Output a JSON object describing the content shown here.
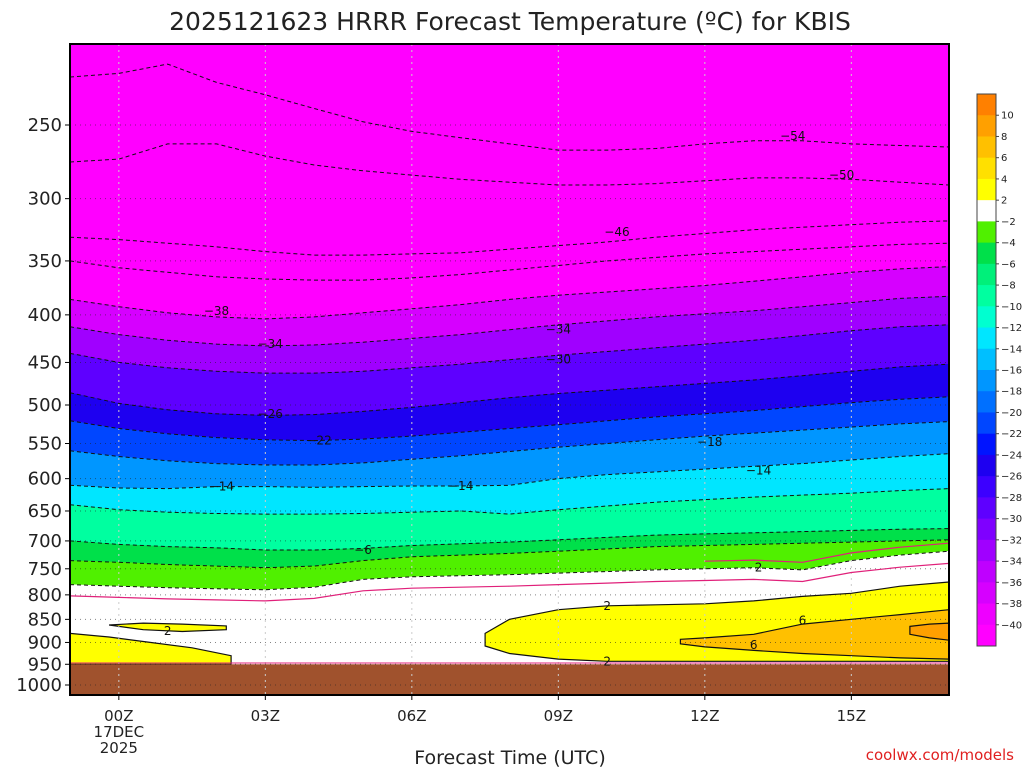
{
  "page": {
    "title": "2025121623 HRRR Forecast Temperature (ºC) for KBIS",
    "credit": "coolwx.com/models"
  },
  "chart_data": {
    "type": "heatmap",
    "title": "2025121623 HRRR Forecast Temperature (ºC) for KBIS",
    "xlabel": "Forecast Time (UTC)",
    "ylabel": "",
    "x_unit": "hours from 00Z 17DEC2025",
    "xlim": [
      -1,
      17
    ],
    "ylim_pressure_hPa": [
      1000,
      200
    ],
    "y_scale": "log-pressure",
    "x_ticks": [
      {
        "value": 0,
        "label": "00Z",
        "sub": [
          "17DEC",
          "2025"
        ]
      },
      {
        "value": 3,
        "label": "03Z"
      },
      {
        "value": 6,
        "label": "06Z"
      },
      {
        "value": 9,
        "label": "09Z"
      },
      {
        "value": 12,
        "label": "12Z"
      },
      {
        "value": 15,
        "label": "15Z"
      }
    ],
    "y_ticks": [
      250,
      300,
      350,
      400,
      450,
      500,
      550,
      600,
      650,
      700,
      750,
      800,
      850,
      900,
      950,
      1000
    ],
    "grid": true,
    "ground_pressure_hPa": 950,
    "ground_color": "#a0522d",
    "color_scale": [
      {
        "lo": -60,
        "hi": -40,
        "color": "#ff00ff"
      },
      {
        "lo": -40,
        "hi": -38,
        "color": "#ee00ff"
      },
      {
        "lo": -38,
        "hi": -36,
        "color": "#d600ff"
      },
      {
        "lo": -36,
        "hi": -34,
        "color": "#bf00ff"
      },
      {
        "lo": -34,
        "hi": -32,
        "color": "#a000ff"
      },
      {
        "lo": -32,
        "hi": -30,
        "color": "#7f00ff"
      },
      {
        "lo": -30,
        "hi": -28,
        "color": "#5e00ff"
      },
      {
        "lo": -28,
        "hi": -26,
        "color": "#3c00ff"
      },
      {
        "lo": -26,
        "hi": -24,
        "color": "#1e00f0"
      },
      {
        "lo": -24,
        "hi": -22,
        "color": "#0014ff"
      },
      {
        "lo": -22,
        "hi": -20,
        "color": "#0046ff"
      },
      {
        "lo": -20,
        "hi": -18,
        "color": "#0070ff"
      },
      {
        "lo": -18,
        "hi": -16,
        "color": "#0096ff"
      },
      {
        "lo": -16,
        "hi": -14,
        "color": "#00bfff"
      },
      {
        "lo": -14,
        "hi": -12,
        "color": "#00e6ff"
      },
      {
        "lo": -12,
        "hi": -10,
        "color": "#00ffd0"
      },
      {
        "lo": -10,
        "hi": -8,
        "color": "#00ffa0"
      },
      {
        "lo": -8,
        "hi": -6,
        "color": "#00f07a"
      },
      {
        "lo": -6,
        "hi": -4,
        "color": "#00e04a"
      },
      {
        "lo": -4,
        "hi": -2,
        "color": "#50f000"
      },
      {
        "lo": -2,
        "hi": 2,
        "color": "#ffffff"
      },
      {
        "lo": 2,
        "hi": 4,
        "color": "#ffff00"
      },
      {
        "lo": 4,
        "hi": 6,
        "color": "#ffe000"
      },
      {
        "lo": 6,
        "hi": 8,
        "color": "#ffc000"
      },
      {
        "lo": 8,
        "hi": 10,
        "color": "#ffa000"
      },
      {
        "lo": 10,
        "hi": 20,
        "color": "#ff8000"
      }
    ],
    "colorbar_labels": [
      10,
      8,
      6,
      4,
      2,
      -2,
      -4,
      -6,
      -8,
      -10,
      -12,
      -14,
      -16,
      -18,
      -20,
      -22,
      -24,
      -26,
      -28,
      -30,
      -32,
      -34,
      -36,
      -38,
      -40
    ],
    "sounding_columns_hours": [
      -1,
      0,
      1,
      2,
      3,
      4,
      5,
      6,
      7,
      8,
      9,
      10,
      11,
      12,
      13,
      14,
      15,
      16,
      17
    ],
    "isotherm_pressures_hPa": [
      {
        "temp": -54,
        "p": [
          222,
          220,
          215,
          225,
          232,
          240,
          248,
          254,
          258,
          262,
          266,
          266,
          265,
          262,
          260,
          260,
          262,
          263,
          264
        ]
      },
      {
        "temp": -50,
        "p": [
          274,
          272,
          262,
          262,
          270,
          276,
          280,
          283,
          286,
          288,
          290,
          290,
          289,
          287,
          285,
          285,
          286,
          288,
          290
        ]
      },
      {
        "temp": -46,
        "p": [
          330,
          332,
          335,
          338,
          342,
          345,
          345,
          344,
          343,
          340,
          337,
          334,
          330,
          327,
          324,
          322,
          320,
          318,
          317
        ]
      },
      {
        "temp": -42,
        "p": [
          350,
          356,
          360,
          364,
          366,
          367,
          367,
          365,
          362,
          358,
          354,
          350,
          347,
          344,
          342,
          340,
          338,
          336,
          335
        ]
      },
      {
        "temp": -38,
        "p": [
          385,
          392,
          398,
          402,
          404,
          402,
          398,
          394,
          390,
          385,
          381,
          378,
          375,
          372,
          368,
          364,
          360,
          357,
          355
        ]
      },
      {
        "temp": -34,
        "p": [
          412,
          420,
          426,
          430,
          432,
          431,
          428,
          424,
          420,
          415,
          410,
          406,
          402,
          399,
          396,
          392,
          388,
          384,
          382
        ]
      },
      {
        "temp": -30,
        "p": [
          440,
          450,
          456,
          460,
          462,
          462,
          460,
          456,
          452,
          447,
          442,
          438,
          434,
          430,
          426,
          421,
          416,
          412,
          410
        ]
      },
      {
        "temp": -26,
        "p": [
          485,
          498,
          506,
          511,
          513,
          512,
          508,
          503,
          497,
          491,
          486,
          482,
          478,
          474,
          470,
          465,
          460,
          455,
          452
        ]
      },
      {
        "temp": -22,
        "p": [
          520,
          530,
          537,
          542,
          545,
          546,
          544,
          540,
          535,
          530,
          525,
          520,
          515,
          511,
          507,
          502,
          497,
          493,
          490
        ]
      },
      {
        "temp": -18,
        "p": [
          560,
          568,
          574,
          578,
          580,
          580,
          577,
          572,
          567,
          561,
          555,
          550,
          545,
          540,
          536,
          532,
          528,
          524,
          521
        ]
      },
      {
        "temp": -14,
        "p": [
          610,
          614,
          615,
          612,
          612,
          613,
          612,
          611,
          611,
          610,
          600,
          594,
          590,
          586,
          582,
          578,
          573,
          568,
          564
        ]
      },
      {
        "temp": -10,
        "p": [
          640,
          648,
          652,
          654,
          655,
          655,
          654,
          652,
          650,
          655,
          648,
          642,
          636,
          632,
          628,
          625,
          622,
          618,
          615
        ]
      },
      {
        "temp": -6,
        "p": [
          700,
          706,
          710,
          712,
          716,
          716,
          713,
          708,
          705,
          702,
          698,
          694,
          690,
          688,
          686,
          684,
          682,
          680,
          679
        ]
      },
      {
        "temp": -4,
        "p": [
          735,
          738,
          742,
          745,
          748,
          745,
          735,
          728,
          725,
          722,
          718,
          714,
          710,
          708,
          706,
          704,
          702,
          700,
          698
        ]
      },
      {
        "temp": -2,
        "p": [
          780,
          783,
          786,
          788,
          790,
          785,
          770,
          765,
          763,
          761,
          758,
          755,
          752,
          750,
          748,
          752,
          735,
          725,
          718
        ]
      }
    ],
    "contour_labels": [
      {
        "text": "−54",
        "x": 13.8,
        "p": 257
      },
      {
        "text": "−50",
        "x": 14.8,
        "p": 283
      },
      {
        "text": "−46",
        "x": 10.2,
        "p": 326
      },
      {
        "text": "−38",
        "x": 2.0,
        "p": 396
      },
      {
        "text": "−34",
        "x": 3.1,
        "p": 430
      },
      {
        "text": "−34",
        "x": 9.0,
        "p": 415
      },
      {
        "text": "−30",
        "x": 9.0,
        "p": 447
      },
      {
        "text": "−26",
        "x": 3.1,
        "p": 511
      },
      {
        "text": "−22",
        "x": 4.1,
        "p": 546
      },
      {
        "text": "−18",
        "x": 12.1,
        "p": 548
      },
      {
        "text": "−14",
        "x": 2.1,
        "p": 612
      },
      {
        "text": "−14",
        "x": 7.0,
        "p": 611
      },
      {
        "text": "−14",
        "x": 13.1,
        "p": 588
      },
      {
        "text": "−6",
        "x": 5.0,
        "p": 716
      },
      {
        "text": "2",
        "x": 13.1,
        "p": 748
      },
      {
        "text": "2",
        "x": 10.0,
        "p": 822
      },
      {
        "text": "2",
        "x": 1.0,
        "p": 875
      },
      {
        "text": "2",
        "x": 10.0,
        "p": 943
      },
      {
        "text": "6",
        "x": 14.0,
        "p": 852
      },
      {
        "text": "6",
        "x": 13.0,
        "p": 906
      }
    ],
    "warm_region_2C_hPa": {
      "x": [
        7.5,
        8,
        9,
        10,
        11,
        12,
        13,
        14,
        15,
        16,
        17
      ],
      "top": [
        880,
        850,
        830,
        822,
        820,
        818,
        812,
        803,
        797,
        783,
        775
      ],
      "bottom": [
        908,
        925,
        938,
        943,
        943,
        943,
        943,
        943,
        943,
        943,
        943
      ]
    },
    "warm_region_6C_hPa": {
      "x": [
        11.5,
        12,
        13,
        14,
        15,
        16,
        17
      ],
      "top": [
        893,
        890,
        882,
        860,
        850,
        840,
        830
      ],
      "bottom": [
        903,
        910,
        918,
        925,
        930,
        935,
        938
      ]
    },
    "warm_region_8C_hPa": {
      "x": [
        16.2,
        16.6,
        17
      ],
      "top": [
        865,
        860,
        858
      ],
      "bottom": [
        882,
        890,
        895
      ]
    },
    "warm_pocket_west_hPa": {
      "x": [
        -1,
        -0.2,
        0.5,
        1.5,
        2.3,
        2.3,
        1.5,
        0.5,
        -0.2,
        -1
      ],
      "p": [
        880,
        888,
        898,
        912,
        930,
        950,
        950,
        950,
        950,
        950
      ]
    },
    "warm_pocket_upper_hPa": {
      "x": [
        -0.2,
        0.5,
        1.3,
        2.2,
        2.2,
        1.3,
        0.5
      ],
      "p": [
        862,
        858,
        860,
        864,
        872,
        876,
        872
      ]
    }
  },
  "colors": {
    "contour": "#111111",
    "freezing_contour": "#e0207a",
    "grid": "#999999"
  }
}
